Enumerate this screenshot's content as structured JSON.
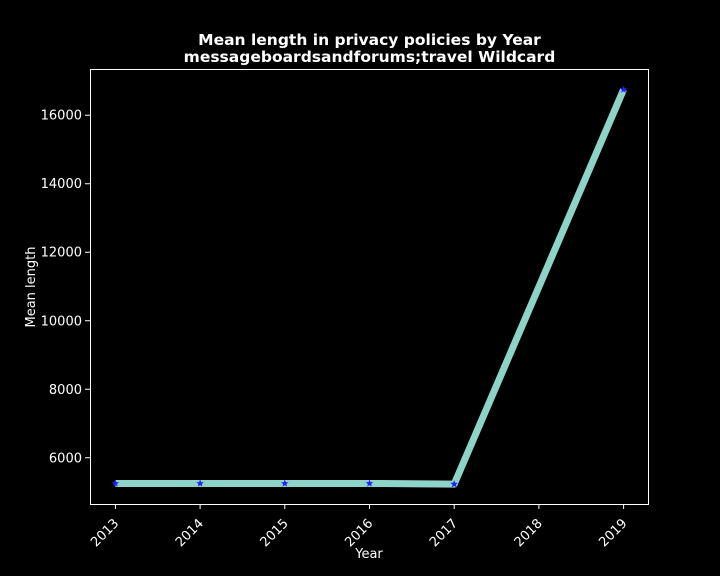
{
  "chart_data": {
    "type": "line",
    "title": "Mean length in privacy policies by Year",
    "subtitle": "messageboardsandforums;travel Wildcard",
    "xlabel": "Year",
    "ylabel": "Mean length",
    "x": [
      2013,
      2014,
      2015,
      2016,
      2017,
      2019
    ],
    "x_ticks": [
      "2013",
      "2014",
      "2015",
      "2016",
      "2017",
      "2018",
      "2019"
    ],
    "y_ticks": [
      6000,
      8000,
      10000,
      12000,
      14000,
      16000
    ],
    "xlim": [
      2012.7,
      2019.3
    ],
    "ylim": [
      4650,
      17350
    ],
    "series": [
      {
        "values": [
          5250,
          5250,
          5250,
          5250,
          5230,
          16750
        ]
      }
    ],
    "line_color": "#8dd3c7",
    "marker_color": "#1f1fff",
    "marker": "star",
    "background": "#000000",
    "grid": false
  }
}
